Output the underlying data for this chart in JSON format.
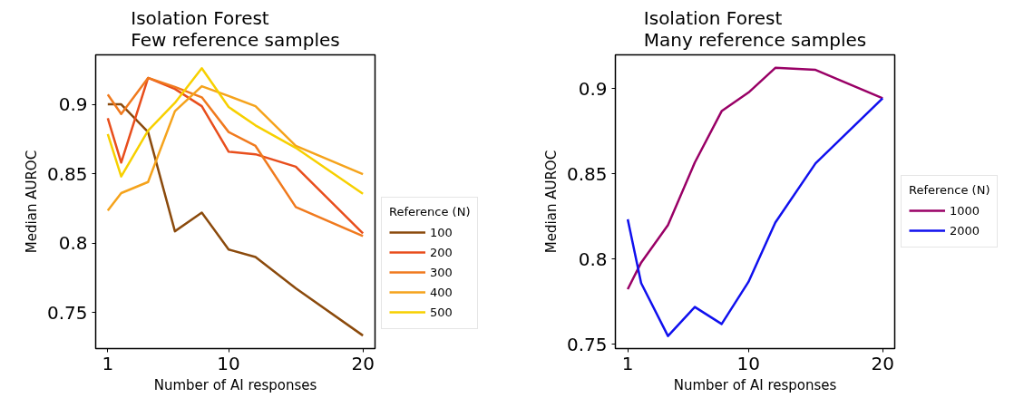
{
  "chart_data": [
    {
      "type": "line",
      "title": "Isolation Forest\nFew reference samples",
      "xlabel": "Number of AI responses",
      "ylabel": "Median AUROC",
      "legend_title": "Reference (N)",
      "legend": "right",
      "grid": false,
      "x": [
        1,
        2,
        4,
        6,
        8,
        10,
        12,
        15,
        20
      ],
      "xlim": [
        0.1,
        20.9
      ],
      "xticks": [
        1,
        10,
        20
      ],
      "ylim": [
        0.724,
        0.9356
      ],
      "yticks": [
        0.75,
        0.8,
        0.85,
        0.9
      ],
      "series": [
        {
          "name": "100",
          "color": "#8b4a0c",
          "values": [
            0.9,
            0.9,
            0.88,
            0.8085,
            0.822,
            0.7954,
            0.79,
            0.7674,
            0.7334
          ]
        },
        {
          "name": "200",
          "color": "#e84e1c",
          "values": [
            0.89,
            0.858,
            0.919,
            0.911,
            0.8986,
            0.8658,
            0.864,
            0.855,
            0.807
          ]
        },
        {
          "name": "300",
          "color": "#f07a1e",
          "values": [
            0.907,
            0.893,
            0.919,
            0.9125,
            0.905,
            0.88,
            0.87,
            0.826,
            0.805
          ]
        },
        {
          "name": "400",
          "color": "#f5a31c",
          "values": [
            0.8235,
            0.836,
            0.844,
            0.895,
            0.913,
            0.906,
            0.8986,
            0.87,
            0.8496
          ]
        },
        {
          "name": "500",
          "color": "#f7d000",
          "values": [
            0.8785,
            0.848,
            0.881,
            0.901,
            0.926,
            0.898,
            0.8848,
            0.8686,
            0.8355
          ]
        }
      ]
    },
    {
      "type": "line",
      "title": "Isolation Forest\nMany reference samples",
      "xlabel": "Number of AI responses",
      "ylabel": "Median AUROC",
      "legend_title": "Reference (N)",
      "legend": "right",
      "grid": false,
      "x": [
        1,
        2,
        4,
        6,
        8,
        10,
        12,
        15,
        20
      ],
      "xlim": [
        0.08,
        20.9
      ],
      "xticks": [
        1,
        10,
        20
      ],
      "ylim": [
        0.7476,
        0.9198
      ],
      "yticks": [
        0.75,
        0.8,
        0.85,
        0.9
      ],
      "series": [
        {
          "name": "1000",
          "color": "#990066",
          "values": [
            0.7824,
            0.798,
            0.82,
            0.8567,
            0.8868,
            0.8977,
            0.9122,
            0.911,
            0.8944
          ]
        },
        {
          "name": "2000",
          "color": "#1010ee",
          "values": [
            0.8234,
            0.786,
            0.755,
            0.772,
            0.762,
            0.7867,
            0.8215,
            0.8562,
            0.8944
          ]
        }
      ]
    }
  ]
}
